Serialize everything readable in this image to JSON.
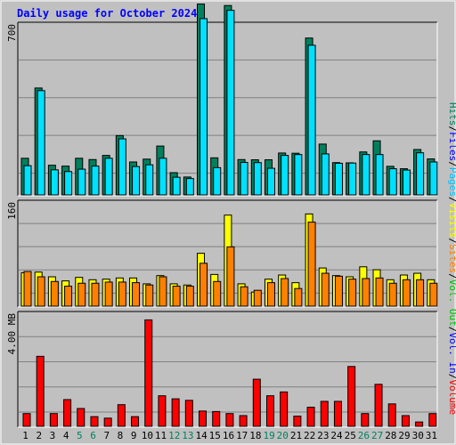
{
  "chart_data": {
    "type": "bar",
    "title": "Daily usage for October 2024",
    "colors": {
      "background": "#c0c0c0",
      "title": "#0000ff",
      "grid": "#808080",
      "weekday": "#000000",
      "weekend": "#00805c",
      "hits": "#00805c",
      "files": "#00e0ff",
      "pages": "#00c0ff",
      "sites": "#ff8000",
      "visits": "#ffff00",
      "kbytes": "#ff0000",
      "vol_in": "#0000ff",
      "vol_out": "#00c000"
    },
    "days": [
      "1",
      "2",
      "3",
      "4",
      "5",
      "6",
      "7",
      "8",
      "9",
      "10",
      "11",
      "12",
      "13",
      "14",
      "15",
      "16",
      "17",
      "18",
      "19",
      "20",
      "21",
      "22",
      "23",
      "24",
      "25",
      "26",
      "27",
      "28",
      "29",
      "30",
      "31"
    ],
    "weekend_days": [
      "5",
      "6",
      "12",
      "13",
      "19",
      "20",
      "26",
      "27"
    ],
    "panels": [
      {
        "id": "hits-files",
        "ymax_label": "700",
        "ymax": 700,
        "legend": [
          "Hits",
          "Files",
          "Pages"
        ],
        "series": [
          {
            "name": "Hits",
            "values": [
              168,
              490,
              136,
              132,
              168,
              162,
              181,
              272,
              151,
              164,
              224,
              102,
              82,
              875,
              170,
              868,
              162,
              161,
              161,
              192,
              191,
              719,
              233,
              148,
              147,
              197,
              248,
              131,
              120,
              208,
              165
            ]
          },
          {
            "name": "Files",
            "values": [
              134,
              478,
              115,
              107,
              118,
              132,
              168,
              257,
              130,
              138,
              168,
              81,
              75,
              808,
              125,
              846,
              149,
              148,
              122,
              181,
              185,
              686,
              188,
              145,
              146,
              185,
              185,
              120,
              114,
              193,
              151
            ]
          }
        ]
      },
      {
        "id": "sites-visits",
        "ymax_label": "160",
        "ymax": 160,
        "legend": [
          "Sites",
          "Visits"
        ],
        "series": [
          {
            "name": "Visits",
            "values": [
              57,
              58,
              50,
              43,
              49,
              45,
              46,
              48,
              48,
              38,
              52,
              38,
              36,
              90,
              54,
              155,
              38,
              24,
              46,
              53,
              40,
              157,
              65,
              52,
              50,
              67,
              62,
              45,
              53,
              56,
              45
            ]
          },
          {
            "name": "Sites",
            "values": [
              59,
              50,
              42,
              34,
              39,
              39,
              41,
              41,
              40,
              36,
              50,
              34,
              34,
              73,
              42,
              101,
              33,
              27,
              40,
              47,
              30,
              143,
              56,
              51,
              46,
              47,
              48,
              39,
              45,
              45,
              39
            ]
          }
        ]
      },
      {
        "id": "kbytes",
        "ymax_label": "4.00 MB",
        "ymax": 4.0,
        "legend": [
          "Volume",
          "Vol. In",
          "Vol. Out"
        ],
        "series": [
          {
            "name": "Volume",
            "values": [
              0.5,
              2.75,
              0.5,
              1.05,
              0.7,
              0.38,
              0.32,
              0.85,
              0.38,
              4.18,
              1.2,
              1.08,
              1.02,
              0.6,
              0.58,
              0.5,
              0.42,
              1.85,
              1.2,
              1.35,
              0.4,
              0.75,
              0.98,
              0.98,
              2.35,
              0.5,
              1.65,
              0.88,
              0.42,
              0.17,
              0.5
            ]
          }
        ]
      }
    ],
    "side_labels": [
      {
        "text": "Hits",
        "color": "#00805c"
      },
      {
        "text": "/",
        "color": "#000000"
      },
      {
        "text": "Files",
        "color": "#0000ff"
      },
      {
        "text": "/",
        "color": "#000000"
      },
      {
        "text": "Pages",
        "color": "#00c0ff"
      },
      {
        "text": "/",
        "color": "#000000"
      },
      {
        "text": "Visits",
        "color": "#ffff00"
      },
      {
        "text": "/",
        "color": "#000000"
      },
      {
        "text": "Sites",
        "color": "#ff8000"
      },
      {
        "text": "/",
        "color": "#000000"
      },
      {
        "text": "Vol. Out",
        "color": "#00c000"
      },
      {
        "text": "/",
        "color": "#000000"
      },
      {
        "text": "Vol. In",
        "color": "#0000ff"
      },
      {
        "text": "/",
        "color": "#000000"
      },
      {
        "text": "Volume",
        "color": "#ff0000"
      }
    ]
  }
}
